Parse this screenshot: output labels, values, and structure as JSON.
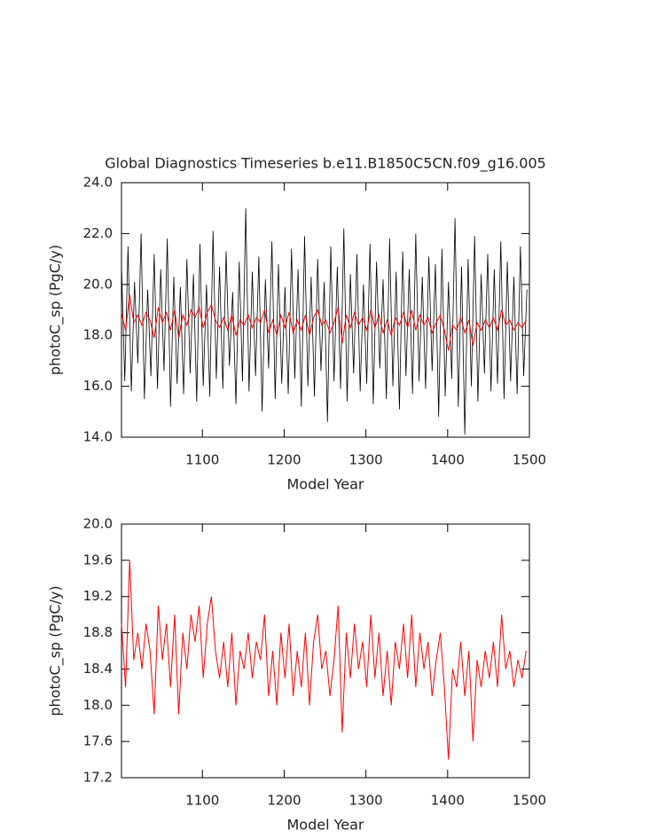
{
  "chart_data": [
    {
      "type": "line",
      "title": "Global Diagnostics Timeseries b.e11.B1850C5CN.f09_g16.005",
      "x_label": "Model Year",
      "y_label": "photoC_sp (PgC/y)",
      "xlim": [
        1001,
        1500
      ],
      "xticks": [
        1100,
        1200,
        1300,
        1400,
        1500
      ],
      "ylim": [
        14,
        24
      ],
      "yticks": [
        {
          "value": 14,
          "label": "14.0"
        },
        {
          "value": 16,
          "label": "16.0"
        },
        {
          "value": 18,
          "label": "18.0"
        },
        {
          "value": 20,
          "label": "20.0"
        },
        {
          "value": 22,
          "label": "22.0"
        },
        {
          "value": 24,
          "label": "24.0"
        }
      ],
      "series": [
        {
          "color": "#000000",
          "x": [
            1001,
            1005,
            1009,
            1013,
            1017,
            1021,
            1025,
            1029,
            1033,
            1037,
            1041,
            1045,
            1049,
            1053,
            1057,
            1061,
            1065,
            1069,
            1073,
            1077,
            1081,
            1085,
            1089,
            1093,
            1097,
            1101,
            1105,
            1109,
            1113,
            1117,
            1121,
            1125,
            1129,
            1133,
            1137,
            1141,
            1145,
            1149,
            1153,
            1157,
            1161,
            1165,
            1169,
            1173,
            1177,
            1181,
            1185,
            1189,
            1193,
            1197,
            1201,
            1205,
            1209,
            1213,
            1217,
            1221,
            1225,
            1229,
            1233,
            1237,
            1241,
            1245,
            1249,
            1253,
            1257,
            1261,
            1265,
            1269,
            1273,
            1277,
            1281,
            1285,
            1289,
            1293,
            1297,
            1301,
            1305,
            1309,
            1313,
            1317,
            1321,
            1325,
            1329,
            1333,
            1337,
            1341,
            1345,
            1349,
            1353,
            1357,
            1361,
            1365,
            1369,
            1373,
            1377,
            1381,
            1385,
            1389,
            1393,
            1397,
            1401,
            1405,
            1409,
            1413,
            1417,
            1421,
            1425,
            1429,
            1433,
            1437,
            1441,
            1445,
            1449,
            1453,
            1457,
            1461,
            1465,
            1469,
            1473,
            1477,
            1481,
            1485,
            1489,
            1493,
            1497
          ],
          "values": [
            20.8,
            16.2,
            21.5,
            15.8,
            20.1,
            16.9,
            22.0,
            15.5,
            19.8,
            16.4,
            21.2,
            15.9,
            20.6,
            16.6,
            21.8,
            15.2,
            20.3,
            16.1,
            19.9,
            15.7,
            21.0,
            16.5,
            20.4,
            15.4,
            21.6,
            16.0,
            20.0,
            15.6,
            22.1,
            16.3,
            20.7,
            15.9,
            21.3,
            16.8,
            19.7,
            15.3,
            20.9,
            16.2,
            23.0,
            15.8,
            20.5,
            16.4,
            21.1,
            15.0,
            20.2,
            16.7,
            21.7,
            15.5,
            20.8,
            16.1,
            19.9,
            15.7,
            21.4,
            16.3,
            20.6,
            15.2,
            21.9,
            16.0,
            20.3,
            15.6,
            21.0,
            16.6,
            20.1,
            14.6,
            21.5,
            16.2,
            20.7,
            15.9,
            22.2,
            15.4,
            20.4,
            16.5,
            21.2,
            15.8,
            20.0,
            16.1,
            21.6,
            15.3,
            20.9,
            16.7,
            20.2,
            15.5,
            21.8,
            16.0,
            20.5,
            15.1,
            21.3,
            16.4,
            20.6,
            15.7,
            22.0,
            16.2,
            20.3,
            15.9,
            21.1,
            16.6,
            20.8,
            14.8,
            21.4,
            15.6,
            20.1,
            16.3,
            22.6,
            15.2,
            20.7,
            14.1,
            21.0,
            16.0,
            21.9,
            15.4,
            20.4,
            16.5,
            21.2,
            15.8,
            20.6,
            16.1,
            21.7,
            15.5,
            20.9,
            16.2,
            20.3,
            15.7,
            21.5,
            16.4,
            19.8
          ]
        },
        {
          "color": "#ff0000",
          "x": [
            1001,
            1006,
            1011,
            1016,
            1021,
            1026,
            1031,
            1036,
            1041,
            1046,
            1051,
            1056,
            1061,
            1066,
            1071,
            1076,
            1081,
            1086,
            1091,
            1096,
            1101,
            1106,
            1111,
            1116,
            1121,
            1126,
            1131,
            1136,
            1141,
            1146,
            1151,
            1156,
            1161,
            1166,
            1171,
            1176,
            1181,
            1186,
            1191,
            1196,
            1201,
            1206,
            1211,
            1216,
            1221,
            1226,
            1231,
            1236,
            1241,
            1246,
            1251,
            1256,
            1261,
            1266,
            1271,
            1276,
            1281,
            1286,
            1291,
            1296,
            1301,
            1306,
            1311,
            1316,
            1321,
            1326,
            1331,
            1336,
            1341,
            1346,
            1351,
            1356,
            1361,
            1366,
            1371,
            1376,
            1381,
            1386,
            1391,
            1396,
            1401,
            1406,
            1411,
            1416,
            1421,
            1426,
            1431,
            1436,
            1441,
            1446,
            1451,
            1456,
            1461,
            1466,
            1471,
            1476,
            1481,
            1486,
            1491,
            1496
          ],
          "values": [
            18.9,
            18.2,
            19.6,
            18.5,
            18.8,
            18.4,
            18.9,
            18.6,
            17.9,
            19.1,
            18.5,
            18.9,
            18.2,
            19.0,
            17.9,
            18.8,
            18.4,
            19.0,
            18.7,
            19.1,
            18.3,
            18.9,
            19.2,
            18.6,
            18.3,
            18.7,
            18.2,
            18.8,
            18.0,
            18.6,
            18.4,
            18.8,
            18.3,
            18.7,
            18.5,
            19.0,
            18.1,
            18.6,
            18.0,
            18.8,
            18.3,
            18.9,
            18.1,
            18.6,
            18.2,
            18.8,
            18.0,
            18.7,
            19.0,
            18.4,
            18.6,
            18.1,
            18.5,
            19.1,
            17.7,
            18.8,
            18.3,
            18.9,
            18.4,
            18.7,
            18.2,
            19.0,
            18.3,
            18.8,
            18.1,
            18.6,
            18.0,
            18.7,
            18.4,
            18.9,
            18.3,
            19.0,
            18.2,
            18.8,
            18.4,
            18.7,
            18.1,
            18.5,
            18.8,
            18.2,
            17.4,
            18.4,
            18.2,
            18.7,
            18.1,
            18.6,
            17.6,
            18.5,
            18.2,
            18.6,
            18.3,
            18.7,
            18.2,
            19.0,
            18.4,
            18.6,
            18.2,
            18.5,
            18.3,
            18.6
          ]
        }
      ]
    },
    {
      "type": "line",
      "x_label": "Model Year",
      "y_label": "photoC_sp (PgC/y)",
      "xlim": [
        1001,
        1500
      ],
      "xticks": [
        1100,
        1200,
        1300,
        1400,
        1500
      ],
      "ylim": [
        17.2,
        20
      ],
      "yticks": [
        17.2,
        17.6,
        {
          "value": 18,
          "label": "18.0"
        },
        18.4,
        18.8,
        19.2,
        19.6,
        {
          "value": 20,
          "label": "20.0"
        }
      ],
      "series": [
        {
          "color": "#ff0000",
          "x": [
            1001,
            1006,
            1011,
            1016,
            1021,
            1026,
            1031,
            1036,
            1041,
            1046,
            1051,
            1056,
            1061,
            1066,
            1071,
            1076,
            1081,
            1086,
            1091,
            1096,
            1101,
            1106,
            1111,
            1116,
            1121,
            1126,
            1131,
            1136,
            1141,
            1146,
            1151,
            1156,
            1161,
            1166,
            1171,
            1176,
            1181,
            1186,
            1191,
            1196,
            1201,
            1206,
            1211,
            1216,
            1221,
            1226,
            1231,
            1236,
            1241,
            1246,
            1251,
            1256,
            1261,
            1266,
            1271,
            1276,
            1281,
            1286,
            1291,
            1296,
            1301,
            1306,
            1311,
            1316,
            1321,
            1326,
            1331,
            1336,
            1341,
            1346,
            1351,
            1356,
            1361,
            1366,
            1371,
            1376,
            1381,
            1386,
            1391,
            1396,
            1401,
            1406,
            1411,
            1416,
            1421,
            1426,
            1431,
            1436,
            1441,
            1446,
            1451,
            1456,
            1461,
            1466,
            1471,
            1476,
            1481,
            1486,
            1491,
            1496
          ],
          "values": [
            18.9,
            18.2,
            19.6,
            18.5,
            18.8,
            18.4,
            18.9,
            18.6,
            17.9,
            19.1,
            18.5,
            18.9,
            18.2,
            19.0,
            17.9,
            18.8,
            18.4,
            19.0,
            18.7,
            19.1,
            18.3,
            18.9,
            19.2,
            18.6,
            18.3,
            18.7,
            18.2,
            18.8,
            18.0,
            18.6,
            18.4,
            18.8,
            18.3,
            18.7,
            18.5,
            19.0,
            18.1,
            18.6,
            18.0,
            18.8,
            18.3,
            18.9,
            18.1,
            18.6,
            18.2,
            18.8,
            18.0,
            18.7,
            19.0,
            18.4,
            18.6,
            18.1,
            18.5,
            19.1,
            17.7,
            18.8,
            18.3,
            18.9,
            18.4,
            18.7,
            18.2,
            19.0,
            18.3,
            18.8,
            18.1,
            18.6,
            18.0,
            18.7,
            18.4,
            18.9,
            18.3,
            19.0,
            18.2,
            18.8,
            18.4,
            18.7,
            18.1,
            18.5,
            18.8,
            18.2,
            17.4,
            18.4,
            18.2,
            18.7,
            18.1,
            18.6,
            17.6,
            18.5,
            18.2,
            18.6,
            18.3,
            18.7,
            18.2,
            19.0,
            18.4,
            18.6,
            18.2,
            18.5,
            18.3,
            18.6
          ]
        }
      ]
    }
  ]
}
